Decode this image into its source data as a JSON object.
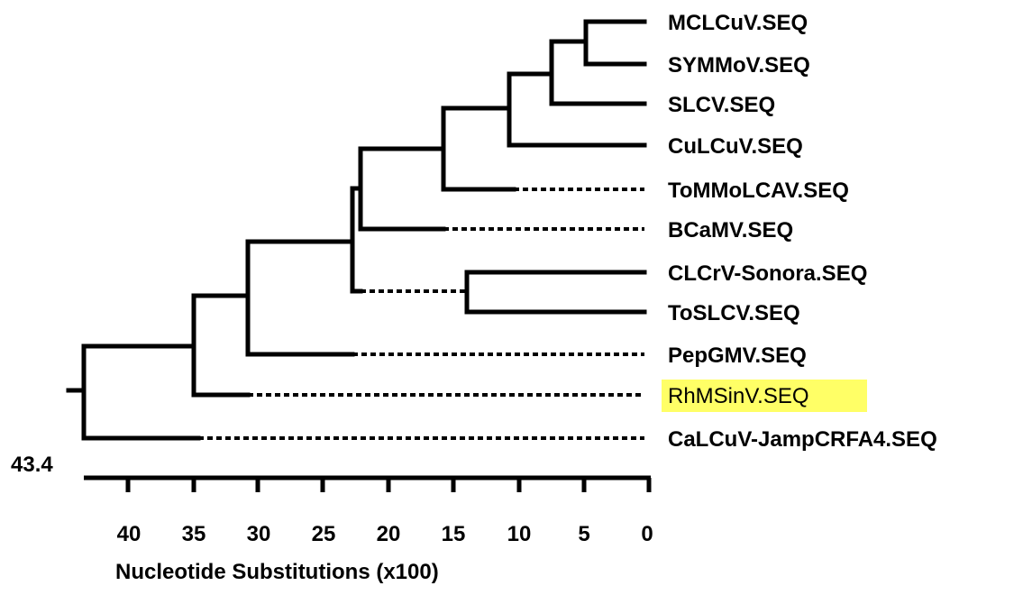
{
  "tree": {
    "root_depth_label": "43.4",
    "axis_title": "Nucleotide Substitutions (x100)",
    "ticks": [
      "40",
      "35",
      "30",
      "25",
      "20",
      "15",
      "10",
      "5",
      "0"
    ],
    "leaves": [
      {
        "id": "mclcuv",
        "label": "MCLCuV.SEQ",
        "highlight": false
      },
      {
        "id": "symmov",
        "label": "SYMMoV.SEQ",
        "highlight": false
      },
      {
        "id": "slcv",
        "label": "SLCV.SEQ",
        "highlight": false
      },
      {
        "id": "culcuv",
        "label": "CuLCuV.SEQ",
        "highlight": false
      },
      {
        "id": "tommolcav",
        "label": "ToMMoLCAV.SEQ",
        "highlight": false
      },
      {
        "id": "bcamv",
        "label": "BCaMV.SEQ",
        "highlight": false
      },
      {
        "id": "clcrv",
        "label": "CLCrV-Sonora.SEQ",
        "highlight": false
      },
      {
        "id": "toslcv",
        "label": "ToSLCV.SEQ",
        "highlight": false
      },
      {
        "id": "pepgmv",
        "label": "PepGMV.SEQ",
        "highlight": false
      },
      {
        "id": "rhmsinv",
        "label": "RhMSinV.SEQ",
        "highlight": true
      },
      {
        "id": "calcuv",
        "label": "CaLCuV-JampCRFA4.SEQ",
        "highlight": false
      }
    ],
    "highlight_color": "#ffff66",
    "line_color": "#000000"
  }
}
